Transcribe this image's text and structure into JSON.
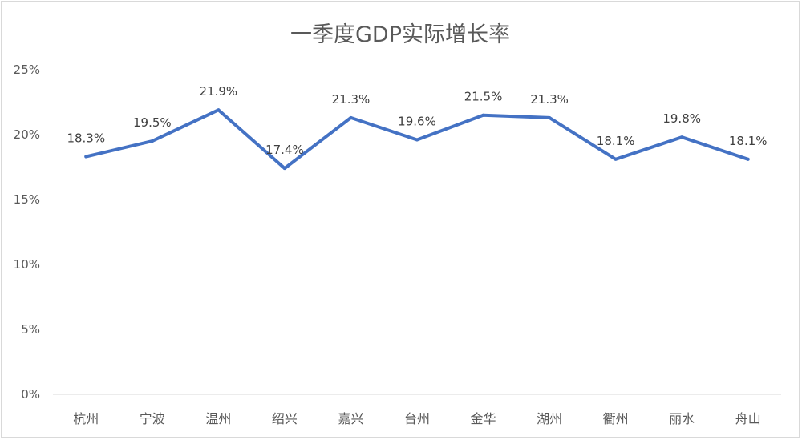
{
  "chart_data": {
    "type": "line",
    "title": "一季度GDP实际增长率",
    "xlabel": "",
    "ylabel": "",
    "categories": [
      "杭州",
      "宁波",
      "温州",
      "绍兴",
      "嘉兴",
      "台州",
      "金华",
      "湖州",
      "衢州",
      "丽水",
      "舟山"
    ],
    "series": [
      {
        "values": [
          18.3,
          19.5,
          21.9,
          17.4,
          21.3,
          19.6,
          21.5,
          21.3,
          18.1,
          19.8,
          18.1
        ],
        "data_labels": [
          "18.3%",
          "19.5%",
          "21.9%",
          "17.4%",
          "21.3%",
          "19.6%",
          "21.5%",
          "21.3%",
          "18.1%",
          "19.8%",
          "18.1%"
        ],
        "color": "#4472C4"
      }
    ],
    "ylim": [
      0,
      25
    ],
    "yticks": [
      0,
      5,
      10,
      15,
      20,
      25
    ],
    "ytick_labels": [
      "0%",
      "5%",
      "10%",
      "15%",
      "20%",
      "25%"
    ],
    "grid": false,
    "legend": "none",
    "colors": {
      "line": "#4472C4",
      "axis": "#d9d9d9",
      "text": "#595959",
      "label": "#404040"
    }
  }
}
